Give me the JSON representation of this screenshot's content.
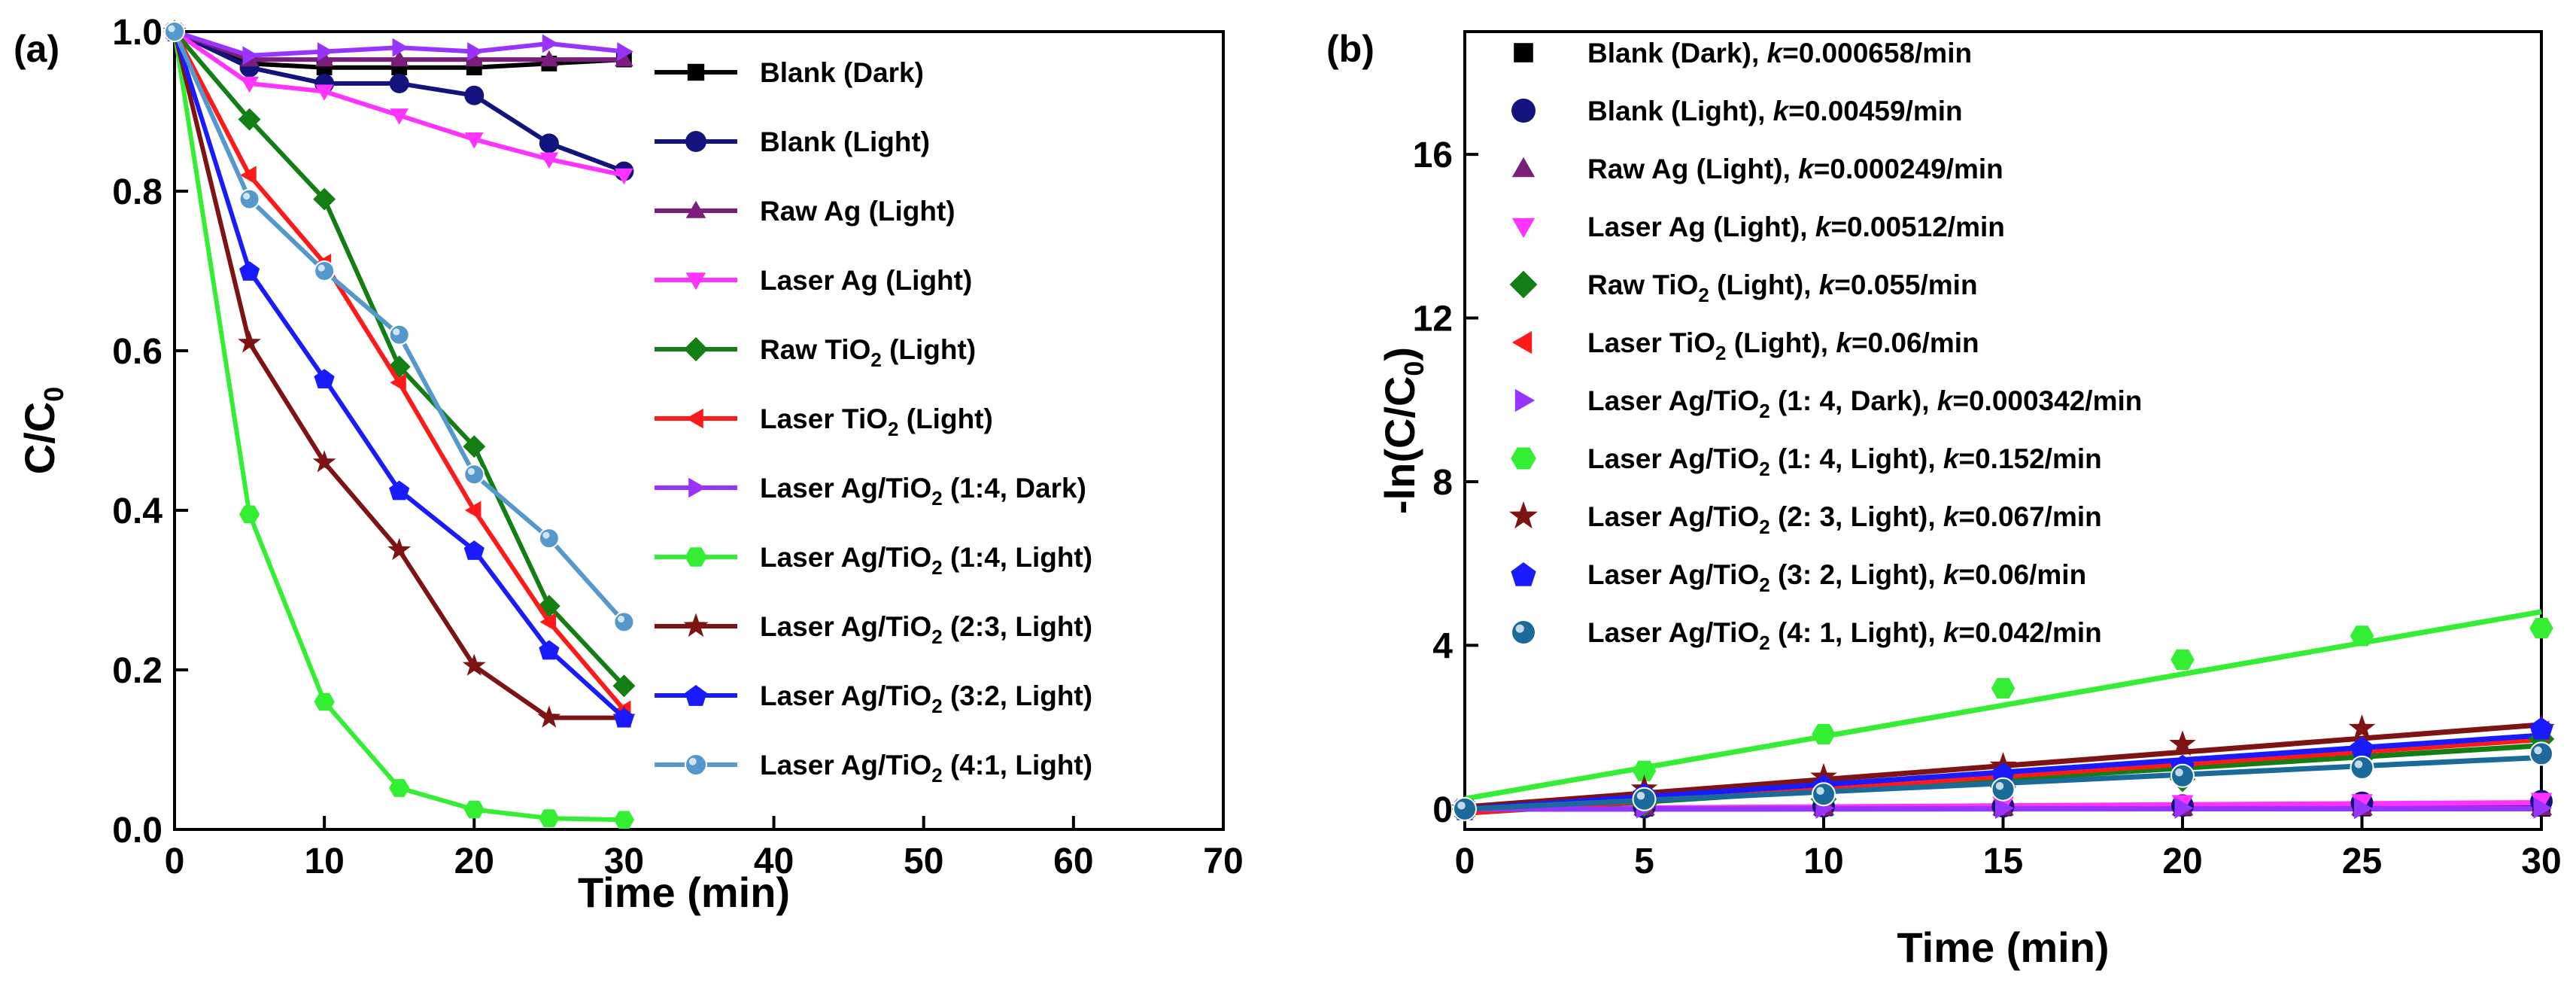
{
  "colors": {
    "blank_dark": "#000000",
    "blank_light": "#13137e",
    "raw_ag": "#7b1e7b",
    "laser_ag": "#ff33ff",
    "raw_tio2": "#137e13",
    "laser_tio2": "#ff1a1a",
    "laser_14_dark": "#9933ff",
    "laser_14_light": "#33ee33",
    "laser_23": "#7e1313",
    "laser_32": "#1a1aff",
    "laser_41": "#5599cc",
    "laser_41_b": "#1a6a9a"
  },
  "chart_data": [
    {
      "id": "a",
      "panel_label": "(a)",
      "type": "line",
      "xlabel": "Time (min)",
      "ylabel": "C/C",
      "ylabel_sub": "0",
      "xlim": [
        0,
        70
      ],
      "ylim": [
        0,
        1.0
      ],
      "xticks": [
        0,
        10,
        20,
        30,
        40,
        50,
        60,
        70
      ],
      "yticks": [
        0.0,
        0.2,
        0.4,
        0.6,
        0.8,
        1.0
      ],
      "xtick_labels": [
        "0",
        "10",
        "20",
        "30",
        "40",
        "50",
        "60",
        "70"
      ],
      "ytick_labels": [
        "0.0",
        "0.2",
        "0.4",
        "0.6",
        "0.8",
        "1.0"
      ],
      "legend_position": "right",
      "x": [
        0,
        5,
        10,
        15,
        20,
        25,
        30
      ],
      "series": [
        {
          "key": "blank_dark",
          "name": "Blank (Dark)",
          "marker": "square",
          "values": [
            1.0,
            0.96,
            0.955,
            0.955,
            0.955,
            0.96,
            0.965
          ]
        },
        {
          "key": "blank_light",
          "name": "Blank (Light)",
          "marker": "circle",
          "values": [
            1.0,
            0.955,
            0.935,
            0.935,
            0.92,
            0.86,
            0.825
          ]
        },
        {
          "key": "raw_ag",
          "name": "Raw Ag (Light)",
          "marker": "triangle-up",
          "values": [
            1.0,
            0.965,
            0.965,
            0.965,
            0.965,
            0.965,
            0.965
          ]
        },
        {
          "key": "laser_ag",
          "name": "Laser Ag (Light)",
          "marker": "triangle-down",
          "values": [
            1.0,
            0.935,
            0.925,
            0.895,
            0.865,
            0.84,
            0.82
          ]
        },
        {
          "key": "raw_tio2",
          "name": "Raw TiO",
          "name_sub": "2",
          "name_tail": " (Light)",
          "marker": "diamond",
          "values": [
            1.0,
            0.89,
            0.79,
            0.58,
            0.48,
            0.28,
            0.18
          ]
        },
        {
          "key": "laser_tio2",
          "name": "Laser TiO",
          "name_sub": "2",
          "name_tail": " (Light)",
          "marker": "triangle-left",
          "values": [
            1.0,
            0.82,
            0.71,
            0.56,
            0.4,
            0.26,
            0.15
          ]
        },
        {
          "key": "laser_14_dark",
          "name": "Laser Ag/TiO",
          "name_sub": "2",
          "name_tail": " (1:4, Dark)",
          "marker": "triangle-right",
          "values": [
            1.0,
            0.97,
            0.975,
            0.98,
            0.975,
            0.985,
            0.975
          ]
        },
        {
          "key": "laser_14_light",
          "name": "Laser Ag/TiO",
          "name_sub": "2",
          "name_tail": " (1:4, Light)",
          "marker": "hexagon",
          "values": [
            1.0,
            0.395,
            0.16,
            0.052,
            0.025,
            0.014,
            0.012
          ]
        },
        {
          "key": "laser_23",
          "name": "Laser Ag/TiO",
          "name_sub": "2",
          "name_tail": " (2:3, Light)",
          "marker": "star",
          "values": [
            1.0,
            0.61,
            0.46,
            0.35,
            0.205,
            0.14,
            0.14
          ]
        },
        {
          "key": "laser_32",
          "name": "Laser Ag/TiO",
          "name_sub": "2",
          "name_tail": " (3:2, Light)",
          "marker": "pentagon",
          "values": [
            1.0,
            0.7,
            0.565,
            0.425,
            0.35,
            0.225,
            0.14
          ]
        },
        {
          "key": "laser_41",
          "name": "Laser Ag/TiO",
          "name_sub": "2",
          "name_tail": " (4:1, Light)",
          "marker": "sphere",
          "values": [
            1.0,
            0.79,
            0.7,
            0.62,
            0.445,
            0.365,
            0.26
          ]
        }
      ]
    },
    {
      "id": "b",
      "panel_label": "(b)",
      "type": "scatter",
      "xlabel": "Time (min)",
      "ylabel": "-ln(C/C",
      "ylabel_sub": "0",
      "ylabel_tail": ")",
      "xlim": [
        0,
        30
      ],
      "ylim": [
        -0.5,
        19
      ],
      "xticks": [
        0,
        5,
        10,
        15,
        20,
        25,
        30
      ],
      "yticks": [
        0,
        4,
        8,
        12,
        16
      ],
      "xtick_labels": [
        "0",
        "5",
        "10",
        "15",
        "20",
        "25",
        "30"
      ],
      "ytick_labels": [
        "0",
        "4",
        "8",
        "12",
        "16"
      ],
      "legend_position": "top-left",
      "x": [
        0,
        5,
        10,
        15,
        20,
        25,
        30
      ],
      "series": [
        {
          "key": "blank_dark",
          "name": "Blank (Dark), ",
          "k_label": "k",
          "k_value": "=0.000658/min",
          "marker": "square",
          "values": [
            0,
            0.04,
            0.045,
            0.045,
            0.045,
            0.04,
            0.035
          ],
          "fit": [
            0,
            0.0197
          ]
        },
        {
          "key": "blank_light",
          "name": "Blank (Light), ",
          "k_label": "k",
          "k_value": "=0.00459/min",
          "marker": "circle",
          "values": [
            0,
            0.046,
            0.067,
            0.067,
            0.083,
            0.15,
            0.19
          ],
          "fit": [
            0,
            0.138
          ]
        },
        {
          "key": "raw_ag",
          "name": "Raw Ag (Light), ",
          "k_label": "k",
          "k_value": "=0.000249/min",
          "marker": "triangle-up",
          "values": [
            0,
            0.036,
            0.036,
            0.036,
            0.036,
            0.036,
            0.036
          ],
          "fit": [
            0,
            0.0075
          ]
        },
        {
          "key": "laser_ag",
          "name": "Laser Ag (Light), ",
          "k_label": "k",
          "k_value": "=0.00512/min",
          "marker": "triangle-down",
          "values": [
            0,
            0.067,
            0.078,
            0.11,
            0.145,
            0.17,
            0.2
          ],
          "fit": [
            0,
            0.154
          ]
        },
        {
          "key": "raw_tio2",
          "name": "Raw TiO",
          "name_sub": "2",
          "name_tail": " (Light), ",
          "k_label": "k",
          "k_value": "=0.055/min",
          "marker": "diamond",
          "values": [
            0,
            0.12,
            0.24,
            0.54,
            0.73,
            1.27,
            1.71
          ],
          "fit": [
            -0.1,
            1.55
          ]
        },
        {
          "key": "laser_tio2",
          "name": "Laser TiO",
          "name_sub": "2",
          "name_tail": " (Light), ",
          "k_label": "k",
          "k_value": "=0.06/min",
          "marker": "triangle-left",
          "values": [
            0,
            0.2,
            0.34,
            0.58,
            0.92,
            1.35,
            1.9
          ],
          "fit": [
            -0.1,
            1.7
          ]
        },
        {
          "key": "laser_14_dark",
          "name": "Laser Ag/TiO",
          "name_sub": "2",
          "name_tail": " (1: 4, Dark), ",
          "k_label": "k",
          "k_value": "=0.000342/min",
          "marker": "triangle-right",
          "values": [
            0,
            0.03,
            0.025,
            0.02,
            0.025,
            0.015,
            0.025
          ],
          "fit": [
            0,
            0.0103
          ]
        },
        {
          "key": "laser_14_light",
          "name": "Laser Ag/TiO",
          "name_sub": "2",
          "name_tail": " (1: 4, Light), ",
          "k_label": "k",
          "k_value": "=0.152/min",
          "marker": "hexagon",
          "values": [
            0,
            0.93,
            1.83,
            2.95,
            3.65,
            4.23,
            4.42
          ],
          "fit": [
            0.25,
            4.82
          ]
        },
        {
          "key": "laser_23",
          "name": "Laser Ag/TiO",
          "name_sub": "2",
          "name_tail": " (2: 3, Light), ",
          "k_label": "k",
          "k_value": "=0.067/min",
          "marker": "star",
          "values": [
            0,
            0.49,
            0.78,
            1.05,
            1.58,
            1.97,
            1.97
          ],
          "fit": [
            0.05,
            2.06
          ]
        },
        {
          "key": "laser_32",
          "name": "Laser Ag/TiO",
          "name_sub": "2",
          "name_tail": " (3: 2, Light), ",
          "k_label": "k",
          "k_value": "=0.06/min",
          "marker": "pentagon",
          "values": [
            0,
            0.36,
            0.57,
            0.86,
            1.05,
            1.49,
            1.97
          ],
          "fit": [
            0,
            1.8
          ]
        },
        {
          "key": "laser_41_b",
          "name": "Laser Ag/TiO",
          "name_sub": "2",
          "name_tail": " (4: 1, Light), ",
          "k_label": "k",
          "k_value": "=0.042/min",
          "marker": "sphere",
          "values": [
            0,
            0.24,
            0.36,
            0.48,
            0.81,
            1.01,
            1.35
          ],
          "fit": [
            0,
            1.26
          ]
        }
      ]
    }
  ]
}
